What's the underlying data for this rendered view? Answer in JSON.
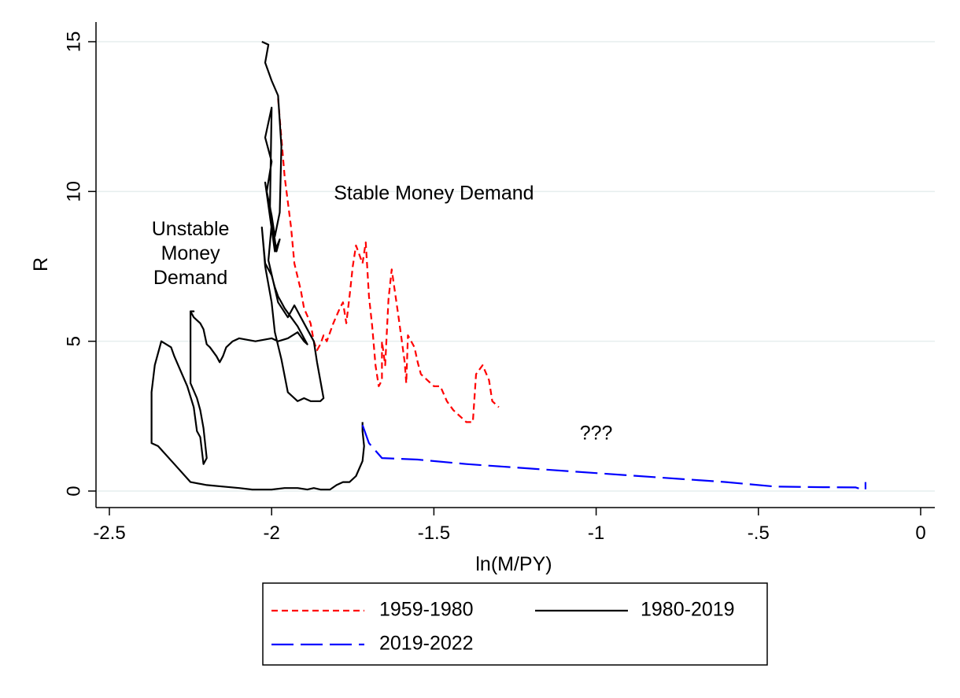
{
  "chart_data": {
    "type": "line",
    "title": "",
    "xlabel": "ln(M/PY)",
    "ylabel": "R",
    "xlim": [
      -2.5,
      0
    ],
    "ylim": [
      0,
      15
    ],
    "x_ticks": [
      -2.5,
      -2,
      -1.5,
      -1,
      -0.5,
      0
    ],
    "x_tick_labels": [
      "-2.5",
      "-2",
      "-1.5",
      "-1",
      "-.5",
      "0"
    ],
    "y_ticks": [
      0,
      5,
      10,
      15
    ],
    "y_tick_labels": [
      "0",
      "5",
      "10",
      "15"
    ],
    "grid": "horizontal",
    "legend_position": "bottom",
    "annotations": [
      {
        "lines": [
          "Stable Money Demand"
        ],
        "x": -1.5,
        "y": 9.9
      },
      {
        "lines": [
          "Unstable",
          "Money",
          "Demand"
        ],
        "x": -2.25,
        "y": 7.9
      },
      {
        "lines": [
          "???"
        ],
        "x": -1.0,
        "y": 1.9
      }
    ],
    "series": [
      {
        "name": "1959-1980",
        "color": "#ff0000",
        "dash": "dashed",
        "points": [
          [
            -1.98,
            13.1
          ],
          [
            -1.96,
            10.5
          ],
          [
            -1.94,
            8.8
          ],
          [
            -1.93,
            7.6
          ],
          [
            -1.91,
            6.7
          ],
          [
            -1.9,
            6.1
          ],
          [
            -1.88,
            5.6
          ],
          [
            -1.87,
            5.0
          ],
          [
            -1.86,
            4.7
          ],
          [
            -1.85,
            4.9
          ],
          [
            -1.84,
            5.2
          ],
          [
            -1.83,
            5.0
          ],
          [
            -1.81,
            5.6
          ],
          [
            -1.79,
            6.1
          ],
          [
            -1.78,
            6.3
          ],
          [
            -1.77,
            5.6
          ],
          [
            -1.76,
            6.5
          ],
          [
            -1.75,
            7.5
          ],
          [
            -1.74,
            8.2
          ],
          [
            -1.72,
            7.6
          ],
          [
            -1.71,
            8.3
          ],
          [
            -1.7,
            6.5
          ],
          [
            -1.69,
            5.5
          ],
          [
            -1.68,
            4.2
          ],
          [
            -1.67,
            3.5
          ],
          [
            -1.66,
            3.7
          ],
          [
            -1.66,
            5.0
          ],
          [
            -1.65,
            4.2
          ],
          [
            -1.64,
            6.4
          ],
          [
            -1.63,
            7.4
          ],
          [
            -1.61,
            5.9
          ],
          [
            -1.6,
            5.1
          ],
          [
            -1.59,
            4.3
          ],
          [
            -1.585,
            3.6
          ],
          [
            -1.58,
            5.2
          ],
          [
            -1.56,
            4.8
          ],
          [
            -1.55,
            4.3
          ],
          [
            -1.54,
            3.9
          ],
          [
            -1.52,
            3.7
          ],
          [
            -1.5,
            3.5
          ],
          [
            -1.48,
            3.5
          ],
          [
            -1.46,
            3.0
          ],
          [
            -1.44,
            2.7
          ],
          [
            -1.42,
            2.5
          ],
          [
            -1.4,
            2.3
          ],
          [
            -1.38,
            2.3
          ],
          [
            -1.37,
            3.9
          ],
          [
            -1.35,
            4.2
          ],
          [
            -1.33,
            3.7
          ],
          [
            -1.32,
            3.0
          ],
          [
            -1.3,
            2.8
          ]
        ]
      },
      {
        "name": "1980-2019",
        "color": "#000000",
        "dash": "solid",
        "points": [
          [
            -2.03,
            15.0
          ],
          [
            -2.01,
            14.9
          ],
          [
            -2.02,
            14.3
          ],
          [
            -2.0,
            13.7
          ],
          [
            -1.98,
            13.2
          ],
          [
            -1.97,
            11.5
          ],
          [
            -1.975,
            9.3
          ],
          [
            -1.99,
            8.5
          ],
          [
            -2.0,
            9.2
          ],
          [
            -2.015,
            10.0
          ],
          [
            -2.0,
            11.0
          ],
          [
            -2.02,
            11.8
          ],
          [
            -2.0,
            12.8
          ],
          [
            -2.005,
            9.5
          ],
          [
            -1.985,
            8.0
          ],
          [
            -1.975,
            8.4
          ],
          [
            -1.99,
            8.0
          ],
          [
            -2.02,
            10.3
          ],
          [
            -2.0,
            8.9
          ],
          [
            -2.01,
            7.7
          ],
          [
            -1.98,
            6.3
          ],
          [
            -1.95,
            5.8
          ],
          [
            -1.93,
            6.2
          ],
          [
            -1.9,
            5.6
          ],
          [
            -1.87,
            5.0
          ],
          [
            -1.86,
            4.3
          ],
          [
            -1.84,
            3.1
          ],
          [
            -1.85,
            3.0
          ],
          [
            -1.88,
            3.0
          ],
          [
            -1.9,
            3.1
          ],
          [
            -1.92,
            3.0
          ],
          [
            -1.95,
            3.3
          ],
          [
            -1.97,
            4.4
          ],
          [
            -1.99,
            5.3
          ],
          [
            -2.0,
            6.3
          ],
          [
            -2.02,
            7.5
          ],
          [
            -2.03,
            8.8
          ],
          [
            -2.02,
            7.6
          ],
          [
            -2.0,
            7.2
          ],
          [
            -1.99,
            6.8
          ],
          [
            -1.98,
            6.5
          ],
          [
            -1.97,
            6.3
          ],
          [
            -1.96,
            6.1
          ],
          [
            -1.94,
            5.8
          ],
          [
            -1.92,
            5.5
          ],
          [
            -1.9,
            5.1
          ],
          [
            -1.89,
            4.9
          ],
          [
            -1.9,
            5.0
          ],
          [
            -1.92,
            5.3
          ],
          [
            -1.95,
            5.1
          ],
          [
            -1.98,
            5.0
          ],
          [
            -2.0,
            5.1
          ],
          [
            -2.05,
            5.0
          ],
          [
            -2.1,
            5.1
          ],
          [
            -2.12,
            5.0
          ],
          [
            -2.14,
            4.8
          ],
          [
            -2.15,
            4.5
          ],
          [
            -2.16,
            4.3
          ],
          [
            -2.17,
            4.5
          ],
          [
            -2.19,
            4.8
          ],
          [
            -2.2,
            4.9
          ],
          [
            -2.21,
            5.4
          ],
          [
            -2.22,
            5.6
          ],
          [
            -2.24,
            5.8
          ],
          [
            -2.25,
            6.0
          ],
          [
            -2.24,
            6.0
          ],
          [
            -2.25,
            6.0
          ],
          [
            -2.25,
            3.6
          ],
          [
            -2.23,
            3.1
          ],
          [
            -2.22,
            2.7
          ],
          [
            -2.21,
            2.1
          ],
          [
            -2.2,
            1.1
          ],
          [
            -2.21,
            0.9
          ],
          [
            -2.22,
            1.8
          ],
          [
            -2.23,
            2.0
          ],
          [
            -2.24,
            2.8
          ],
          [
            -2.26,
            3.5
          ],
          [
            -2.28,
            4.0
          ],
          [
            -2.3,
            4.5
          ],
          [
            -2.31,
            4.8
          ],
          [
            -2.34,
            5.0
          ],
          [
            -2.36,
            4.2
          ],
          [
            -2.37,
            3.3
          ],
          [
            -2.37,
            1.6
          ],
          [
            -2.35,
            1.5
          ],
          [
            -2.3,
            0.9
          ],
          [
            -2.25,
            0.3
          ],
          [
            -2.2,
            0.2
          ],
          [
            -2.15,
            0.15
          ],
          [
            -2.1,
            0.1
          ],
          [
            -2.06,
            0.05
          ],
          [
            -2.0,
            0.05
          ],
          [
            -1.96,
            0.1
          ],
          [
            -1.92,
            0.1
          ],
          [
            -1.89,
            0.05
          ],
          [
            -1.87,
            0.1
          ],
          [
            -1.85,
            0.05
          ],
          [
            -1.82,
            0.05
          ],
          [
            -1.8,
            0.2
          ],
          [
            -1.78,
            0.3
          ],
          [
            -1.76,
            0.3
          ],
          [
            -1.74,
            0.5
          ],
          [
            -1.72,
            1.0
          ],
          [
            -1.715,
            1.5
          ],
          [
            -1.72,
            2.0
          ],
          [
            -1.72,
            2.3
          ]
        ]
      },
      {
        "name": "2019-2022",
        "color": "#0000ff",
        "dash": "longdash",
        "points": [
          [
            -1.72,
            2.2
          ],
          [
            -1.7,
            1.6
          ],
          [
            -1.66,
            1.1
          ],
          [
            -1.55,
            1.05
          ],
          [
            -1.4,
            0.9
          ],
          [
            -1.2,
            0.75
          ],
          [
            -1.0,
            0.6
          ],
          [
            -0.8,
            0.45
          ],
          [
            -0.6,
            0.3
          ],
          [
            -0.45,
            0.15
          ],
          [
            -0.3,
            0.13
          ],
          [
            -0.2,
            0.12
          ],
          [
            -0.18,
            0.05
          ],
          [
            -0.17,
            0.05
          ],
          [
            -0.17,
            0.3
          ]
        ]
      }
    ]
  }
}
